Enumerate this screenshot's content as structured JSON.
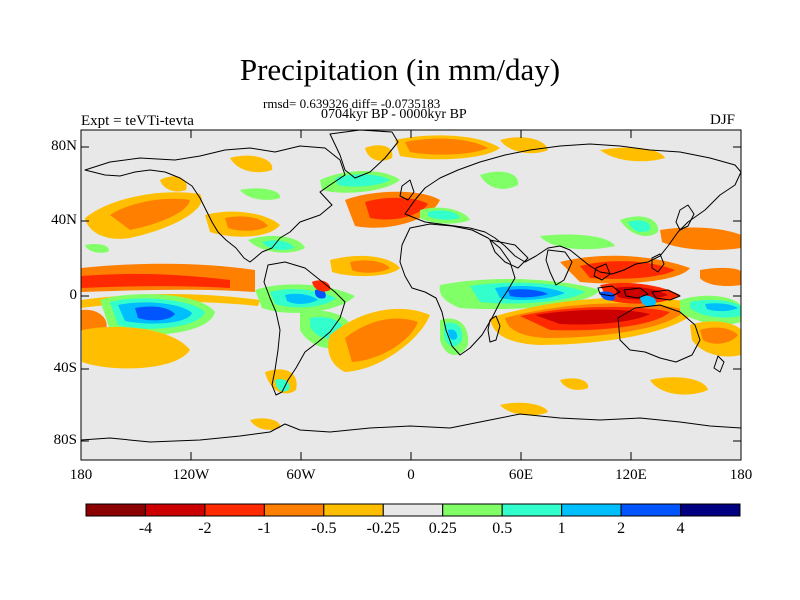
{
  "title": "Precipitation (in mm/day)",
  "stats_line": "rmsd= 0.639326 diff= -0.0735183",
  "period_line": "0704kyr BP - 0000kyr BP",
  "expt_label": "Expt = teVTi-tevta",
  "season_label": "DJF",
  "lat_ticks": [
    "80N",
    "40N",
    "0",
    "40S",
    "80S"
  ],
  "lon_ticks": [
    "180",
    "120W",
    "60W",
    "0",
    "60E",
    "120E",
    "180"
  ],
  "colorbar": {
    "labels": [
      "-4",
      "-2",
      "-1",
      "-0.5",
      "-0.25",
      "0.25",
      "0.5",
      "1",
      "2",
      "4"
    ],
    "colors": [
      "#8b0000",
      "#cc0000",
      "#ff2a00",
      "#ff7f00",
      "#ffbf00",
      "#e8e8e8",
      "#80ff66",
      "#33ffcc",
      "#00bfff",
      "#0055ff",
      "#000080"
    ]
  },
  "map_background": "#e8e8e8"
}
